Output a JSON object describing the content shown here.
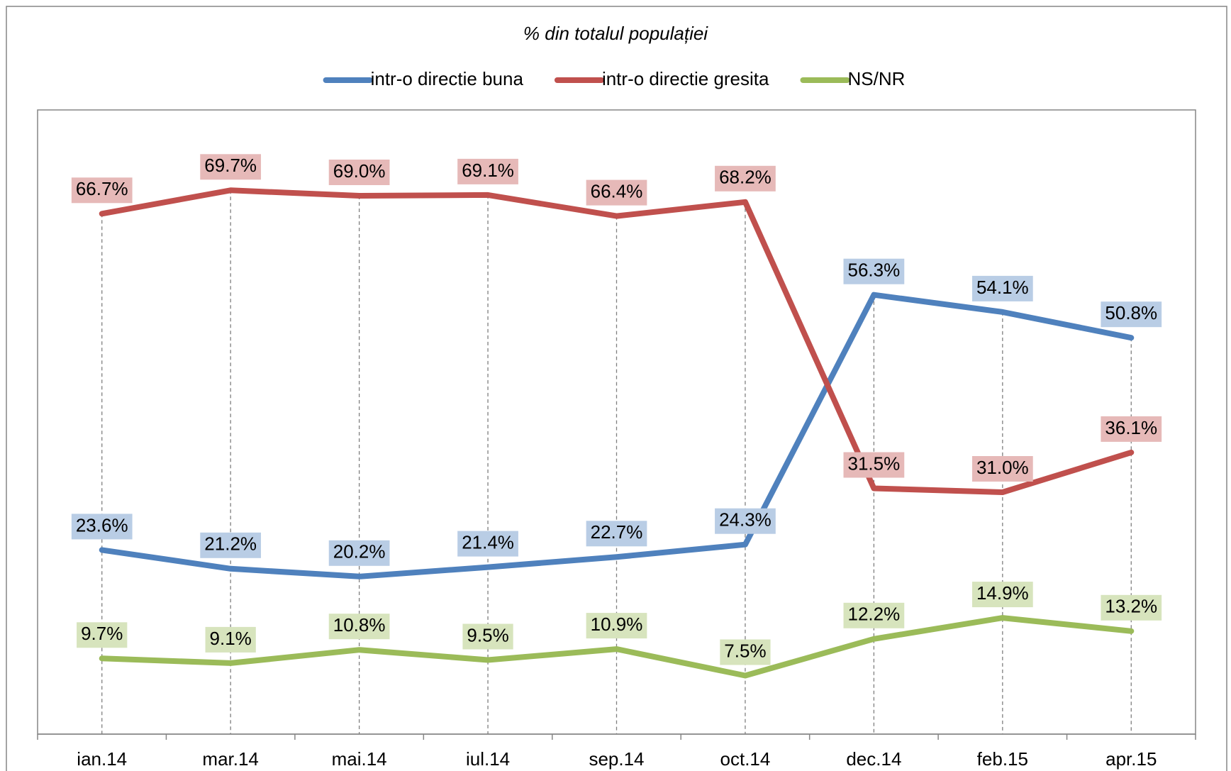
{
  "chart_data": {
    "type": "line",
    "title": "% din totalul populației",
    "categories": [
      "ian.14",
      "mar.14",
      "mai.14",
      "iul.14",
      "sep.14",
      "oct.14",
      "dec.14",
      "feb.15",
      "apr.15"
    ],
    "series": [
      {
        "name": "intr-o directie buna",
        "color": "#4f81bd",
        "label_bg": "#b9cde5",
        "values": [
          23.6,
          21.2,
          20.2,
          21.4,
          22.7,
          24.3,
          56.3,
          54.1,
          50.8
        ],
        "value_labels": [
          "23.6%",
          "21.2%",
          "20.2%",
          "21.4%",
          "22.7%",
          "24.3%",
          "56.3%",
          "54.1%",
          "50.8%"
        ]
      },
      {
        "name": "intr-o directie gresita",
        "color": "#c0504d",
        "label_bg": "#e6b9b8",
        "values": [
          66.7,
          69.7,
          69.0,
          69.1,
          66.4,
          68.2,
          31.5,
          31.0,
          36.1
        ],
        "value_labels": [
          "66.7%",
          "69.7%",
          "69.0%",
          "69.1%",
          "66.4%",
          "68.2%",
          "31.5%",
          "31.0%",
          "36.1%"
        ]
      },
      {
        "name": "NS/NR",
        "color": "#9bbb59",
        "label_bg": "#d7e4bd",
        "values": [
          9.7,
          9.1,
          10.8,
          9.5,
          10.9,
          7.5,
          12.2,
          14.9,
          13.2
        ],
        "value_labels": [
          "9.7%",
          "9.1%",
          "10.8%",
          "9.5%",
          "10.9%",
          "7.5%",
          "12.2%",
          "14.9%",
          "13.2%"
        ]
      }
    ],
    "ylim": [
      0,
      80
    ],
    "legend": "top"
  }
}
